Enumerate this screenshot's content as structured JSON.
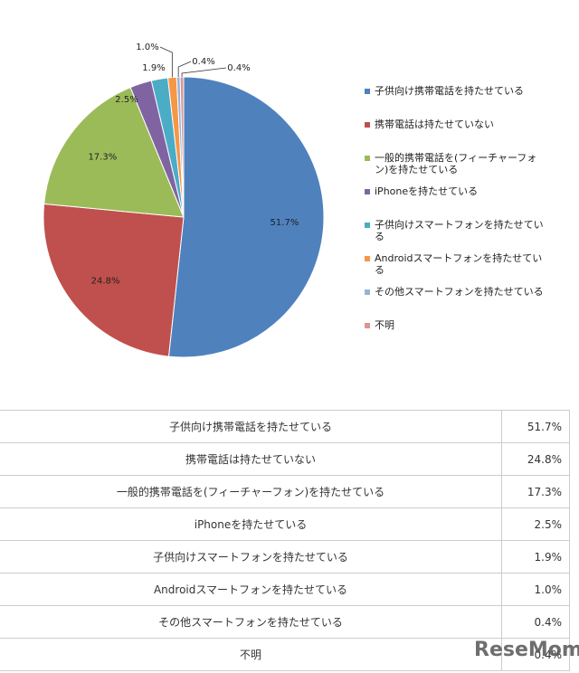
{
  "chart_data": {
    "type": "pie",
    "categories": [
      "子供向け携帯電話を持たせている",
      "携帯電話は持たせていない",
      "一般的携帯電話を(フィーチャーフォン)を持たせている",
      "iPhoneを持たせている",
      "子供向けスマートフォンを持たせている",
      "Androidスマートフォンを持たせている",
      "その他スマートフォンを持たせている",
      "不明"
    ],
    "values": [
      51.7,
      24.8,
      17.3,
      2.5,
      1.9,
      1.0,
      0.4,
      0.4
    ],
    "value_labels": [
      "51.7%",
      "24.8%",
      "17.3%",
      "2.5%",
      "1.9%",
      "1.0%",
      "0.4%",
      "0.4%"
    ],
    "colors": [
      "#4f81bd",
      "#c0504d",
      "#9bbb59",
      "#8064a2",
      "#4bacc6",
      "#f79646",
      "#95b3d7",
      "#d99694"
    ],
    "legend": "right"
  },
  "table": {
    "rows": [
      [
        "子供向け携帯電話を持たせている",
        "51.7%"
      ],
      [
        "携帯電話は持たせていない",
        "24.8%"
      ],
      [
        "一般的携帯電話を(フィーチャーフォン)を持たせている",
        "17.3%"
      ],
      [
        "iPhoneを持たせている",
        "2.5%"
      ],
      [
        "子供向けスマートフォンを持たせている",
        "1.9%"
      ],
      [
        "Androidスマートフォンを持たせている",
        "1.0%"
      ],
      [
        "その他スマートフォンを持たせている",
        "0.4%"
      ],
      [
        "不明",
        "0.4%"
      ]
    ]
  },
  "watermark": "ReseMom"
}
